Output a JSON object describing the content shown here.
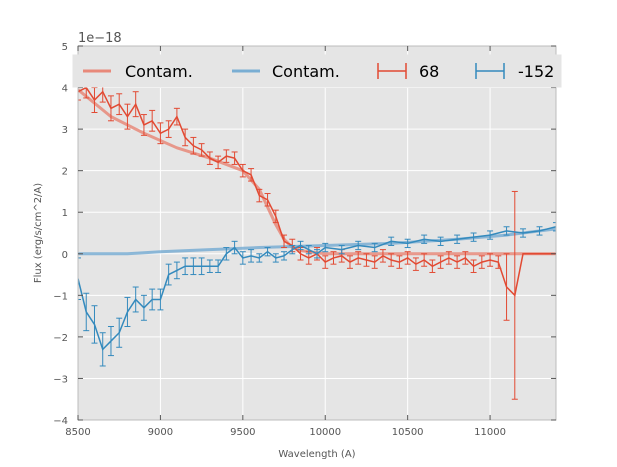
{
  "chart_data": {
    "type": "line",
    "title": "",
    "xlabel": "Wavelength (A)",
    "ylabel": "Flux (erg/s/cm^2/A)",
    "y_offset_label": "1e−18",
    "y_scale": 1e-18,
    "xlim": [
      8500,
      11400
    ],
    "ylim": [
      -4,
      5
    ],
    "xticks": [
      8500,
      9000,
      9500,
      10000,
      10500,
      11000
    ],
    "yticks": [
      -4,
      -3,
      -2,
      -1,
      0,
      1,
      2,
      3,
      4,
      5
    ],
    "ytick_labels": [
      "−4",
      "−3",
      "−2",
      "−1",
      "0",
      "1",
      "2",
      "3",
      "4",
      "5"
    ],
    "grid": true,
    "legend_position": "top",
    "legend": [
      "Contam.",
      "Contam.",
      "68",
      "-152"
    ],
    "colors": {
      "red": "#E24A33",
      "red_contam": "#E8897A",
      "blue": "#348ABD",
      "blue_contam": "#7AAED3",
      "panel_bg": "#E5E5E5",
      "grid": "#FFFFFF"
    },
    "series": [
      {
        "name": "Contam.",
        "kind": "contam",
        "color": "#E8897A",
        "x": [
          8500,
          8700,
          8900,
          9100,
          9300,
          9500,
          9600,
          9700,
          9750,
          9800,
          9850,
          9900,
          10000,
          11400
        ],
        "y": [
          3.95,
          3.3,
          2.9,
          2.55,
          2.3,
          2.0,
          1.55,
          0.7,
          0.35,
          0.15,
          0.08,
          0.05,
          0.0,
          0.0
        ]
      },
      {
        "name": "Contam.",
        "kind": "contam",
        "color": "#7AAED3",
        "x": [
          8500,
          8800,
          9000,
          9300,
          9600,
          10000,
          10400,
          10800,
          11100,
          11400
        ],
        "y": [
          0.0,
          0.0,
          0.05,
          0.1,
          0.15,
          0.2,
          0.25,
          0.35,
          0.45,
          0.6
        ]
      },
      {
        "name": "68",
        "kind": "data",
        "color": "#E24A33",
        "x": [
          8500,
          8550,
          8600,
          8650,
          8700,
          8750,
          8800,
          8850,
          8900,
          8950,
          9000,
          9050,
          9100,
          9150,
          9200,
          9250,
          9300,
          9350,
          9400,
          9450,
          9500,
          9550,
          9600,
          9650,
          9700,
          9750,
          9800,
          9850,
          9900,
          9950,
          10000,
          10050,
          10100,
          10150,
          10200,
          10250,
          10300,
          10350,
          10400,
          10450,
          10500,
          10550,
          10600,
          10650,
          10700,
          10750,
          10800,
          10850,
          10900,
          10950,
          11000,
          11050,
          11100,
          11150,
          11200,
          11300,
          11400
        ],
        "y": [
          3.9,
          4.0,
          3.7,
          3.9,
          3.5,
          3.6,
          3.3,
          3.6,
          3.1,
          3.2,
          2.9,
          3.0,
          3.3,
          2.8,
          2.6,
          2.5,
          2.3,
          2.2,
          2.35,
          2.3,
          2.0,
          1.9,
          1.4,
          1.3,
          0.9,
          0.3,
          0.2,
          0.0,
          -0.1,
          0.0,
          -0.2,
          -0.1,
          -0.05,
          -0.2,
          -0.1,
          -0.15,
          -0.2,
          -0.05,
          -0.15,
          -0.2,
          -0.1,
          -0.25,
          -0.15,
          -0.3,
          -0.2,
          -0.1,
          -0.2,
          -0.1,
          -0.3,
          -0.2,
          -0.15,
          -0.2,
          -0.8,
          -1.0,
          0.0,
          0.0,
          0.0
        ],
        "err": [
          0.2,
          0.25,
          0.3,
          0.25,
          0.3,
          0.25,
          0.3,
          0.3,
          0.25,
          0.25,
          0.25,
          0.2,
          0.2,
          0.2,
          0.2,
          0.15,
          0.15,
          0.15,
          0.15,
          0.15,
          0.15,
          0.15,
          0.15,
          0.15,
          0.15,
          0.15,
          0.15,
          0.15,
          0.15,
          0.15,
          0.15,
          0.15,
          0.15,
          0.15,
          0.15,
          0.15,
          0.15,
          0.15,
          0.15,
          0.15,
          0.15,
          0.15,
          0.15,
          0.15,
          0.15,
          0.15,
          0.15,
          0.15,
          0.15,
          0.15,
          0.15,
          0.15,
          0.8,
          2.5,
          0.0,
          0.0,
          0.0
        ]
      },
      {
        "name": "-152",
        "kind": "data",
        "color": "#348ABD",
        "x": [
          8500,
          8550,
          8600,
          8650,
          8700,
          8750,
          8800,
          8850,
          8900,
          8950,
          9000,
          9050,
          9100,
          9150,
          9200,
          9250,
          9300,
          9350,
          9400,
          9450,
          9500,
          9550,
          9600,
          9650,
          9700,
          9750,
          9800,
          9850,
          9900,
          9950,
          10000,
          10100,
          10200,
          10300,
          10400,
          10500,
          10600,
          10700,
          10800,
          10900,
          11000,
          11100,
          11200,
          11300,
          11400
        ],
        "y": [
          -0.6,
          -1.4,
          -1.7,
          -2.3,
          -2.1,
          -1.9,
          -1.4,
          -1.1,
          -1.3,
          -1.1,
          -1.1,
          -0.5,
          -0.4,
          -0.3,
          -0.3,
          -0.3,
          -0.3,
          -0.3,
          0.0,
          0.15,
          -0.1,
          -0.05,
          -0.1,
          0.05,
          -0.1,
          -0.05,
          0.1,
          0.2,
          0.1,
          0.0,
          0.15,
          0.1,
          0.2,
          0.15,
          0.3,
          0.25,
          0.35,
          0.3,
          0.35,
          0.4,
          0.45,
          0.55,
          0.5,
          0.55,
          0.65
        ],
        "err": [
          0.5,
          0.45,
          0.45,
          0.4,
          0.35,
          0.35,
          0.35,
          0.3,
          0.3,
          0.25,
          0.25,
          0.25,
          0.2,
          0.2,
          0.2,
          0.2,
          0.15,
          0.15,
          0.15,
          0.15,
          0.15,
          0.15,
          0.1,
          0.1,
          0.1,
          0.1,
          0.1,
          0.1,
          0.1,
          0.1,
          0.1,
          0.1,
          0.1,
          0.1,
          0.1,
          0.1,
          0.1,
          0.1,
          0.1,
          0.1,
          0.1,
          0.1,
          0.1,
          0.1,
          0.1
        ]
      }
    ]
  }
}
